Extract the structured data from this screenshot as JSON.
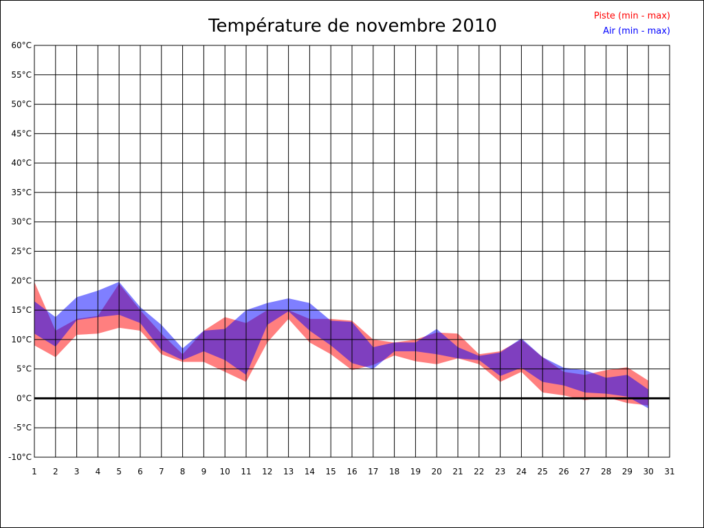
{
  "chart_data": {
    "type": "area",
    "title": "Température de novembre 2010",
    "x": [
      1,
      2,
      3,
      4,
      5,
      6,
      7,
      8,
      9,
      10,
      11,
      12,
      13,
      14,
      15,
      16,
      17,
      18,
      19,
      20,
      21,
      22,
      23,
      24,
      25,
      26,
      27,
      28,
      29,
      30
    ],
    "xticks": [
      "1",
      "2",
      "3",
      "4",
      "5",
      "6",
      "7",
      "8",
      "9",
      "10",
      "11",
      "12",
      "13",
      "14",
      "15",
      "16",
      "17",
      "18",
      "19",
      "20",
      "21",
      "22",
      "23",
      "24",
      "25",
      "26",
      "27",
      "28",
      "29",
      "30",
      "31"
    ],
    "xlim": [
      1,
      31
    ],
    "ylim": [
      -10,
      60
    ],
    "yticks": [
      "-10°C",
      "-5°C",
      "0°C",
      "5°C",
      "10°C",
      "15°C",
      "20°C",
      "25°C",
      "30°C",
      "35°C",
      "40°C",
      "45°C",
      "50°C",
      "55°C",
      "60°C"
    ],
    "grid": true,
    "legend_position": "top-right",
    "series": [
      {
        "name": "Piste (min - max)",
        "color": "#ff0000",
        "min": [
          9,
          7,
          10.8,
          11,
          12,
          11.5,
          7.5,
          6.2,
          6.2,
          4.5,
          2.8,
          9.5,
          13.5,
          9.5,
          7.5,
          4.8,
          5.7,
          7.3,
          6.3,
          5.8,
          6.8,
          5.8,
          2.8,
          4.5,
          1,
          0.5,
          -0.3,
          0.2,
          -0.8,
          -1.2
        ],
        "max": [
          19.8,
          11.5,
          13.5,
          14,
          19.5,
          15,
          11,
          7.5,
          11.5,
          13.8,
          12.8,
          15,
          15,
          13.5,
          13.5,
          13.2,
          10,
          9.5,
          10,
          11.2,
          11,
          7.5,
          8,
          10,
          7,
          4.5,
          4,
          4.8,
          5.3,
          3
        ]
      },
      {
        "name": "Air (min - max)",
        "color": "#0000ff",
        "min": [
          11,
          8.8,
          13.3,
          13.8,
          14.2,
          12.8,
          8.2,
          6.5,
          8,
          6.5,
          4,
          12.5,
          14.8,
          11.5,
          9,
          6,
          5,
          8,
          8,
          7.5,
          6.8,
          6.5,
          3.8,
          5.2,
          2.8,
          2.2,
          1,
          0.8,
          0.3,
          -1.7
        ],
        "max": [
          16.5,
          13.8,
          17.2,
          18.3,
          19.8,
          15.5,
          12.5,
          8.5,
          11.5,
          11.8,
          15,
          16.2,
          17,
          16.2,
          13.2,
          13,
          8.7,
          9.5,
          9.5,
          11.8,
          8.7,
          7.2,
          7.8,
          10.2,
          7,
          5.2,
          4.8,
          3.5,
          4,
          1.5
        ]
      }
    ]
  }
}
